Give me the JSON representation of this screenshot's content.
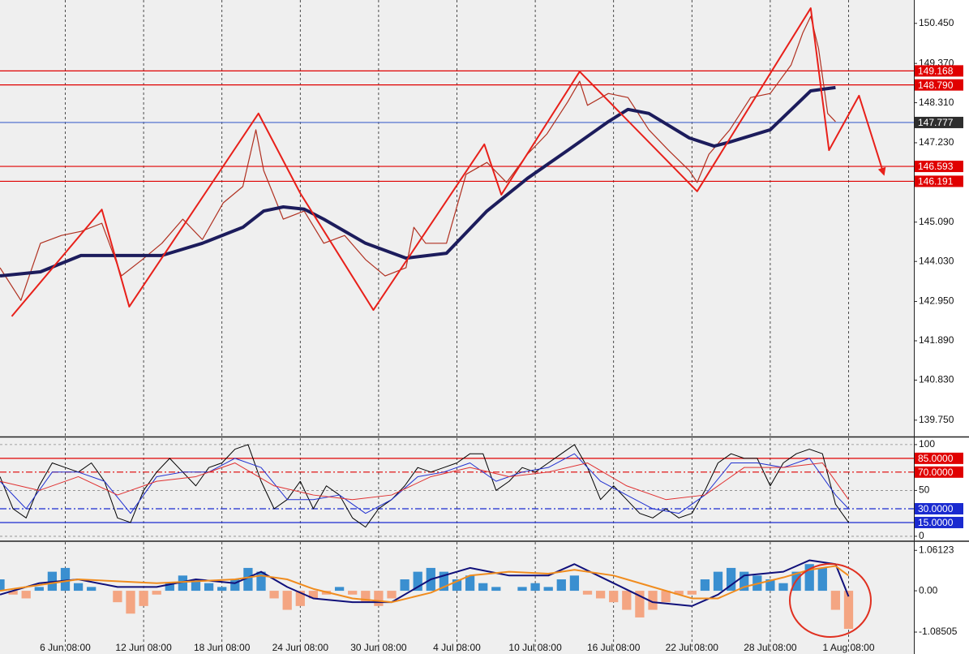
{
  "chart_data": [
    {
      "type": "line",
      "xlim": [
        1,
        71
      ],
      "ylim": [
        139.33,
        151.08
      ],
      "yticks": [
        {
          "value": 150.45,
          "label": "150.450"
        },
        {
          "value": 149.37,
          "label": "149.370"
        },
        {
          "value": 148.31,
          "label": "148.310"
        },
        {
          "value": 147.23,
          "label": "147.230"
        },
        {
          "value": 145.09,
          "label": "145.090"
        },
        {
          "value": 144.03,
          "label": "144.030"
        },
        {
          "value": 142.95,
          "label": "142.950"
        },
        {
          "value": 141.89,
          "label": "141.890"
        },
        {
          "value": 140.83,
          "label": "140.830"
        },
        {
          "value": 139.75,
          "label": "139.750"
        }
      ],
      "levels": [
        {
          "value": 149.168,
          "color": "#e00000",
          "box_color": "#e00000",
          "style": "solid"
        },
        {
          "value": 148.79,
          "label": "148.790",
          "color": "#e00000",
          "box_color": "#e00000",
          "style": "solid"
        },
        {
          "value": 147.777,
          "color": "#4466cc",
          "box_color": "#2e2e2e",
          "style": "solid"
        },
        {
          "value": 146.593,
          "color": "#e00000",
          "box_color": "#e00000",
          "style": "solid"
        },
        {
          "value": 146.191,
          "color": "#e00000",
          "box_color": "#e00000",
          "style": "solid"
        }
      ],
      "series": [
        {
          "color": "#b03020",
          "width": 1.2,
          "x": [
            1,
            2.6,
            4.1,
            5.7,
            7.2,
            8.8,
            10.3,
            11.9,
            13.4,
            15,
            16.5,
            18.1,
            19.6,
            20.6,
            21.2,
            22.7,
            24.3,
            25.8,
            27.4,
            29,
            30.5,
            32.1,
            32.7,
            33.6,
            35.2,
            36.7,
            38.3,
            39.8,
            41.4,
            42.9,
            44.5,
            45.4,
            46,
            47.6,
            49.1,
            50.7,
            52.2,
            53.8,
            54.4,
            55.3,
            56.9,
            58.5,
            60,
            61.6,
            62.5,
            63.1,
            63.7,
            64.4,
            65
          ],
          "values": [
            143.86,
            142.98,
            144.52,
            144.73,
            144.84,
            145.06,
            143.64,
            144.08,
            144.52,
            145.17,
            144.62,
            145.61,
            146.05,
            147.58,
            146.48,
            145.17,
            145.39,
            144.52,
            144.73,
            144.08,
            143.64,
            143.86,
            144.95,
            144.52,
            144.52,
            146.38,
            146.7,
            146.16,
            146.92,
            147.47,
            148.34,
            148.89,
            148.24,
            148.56,
            148.45,
            147.58,
            147.03,
            146.48,
            146.16,
            146.92,
            147.58,
            148.45,
            148.56,
            149.33,
            150.2,
            150.64,
            149.77,
            148.02,
            147.8
          ]
        },
        {
          "color": "#1c1c5c",
          "width": 4,
          "x": [
            1,
            4.1,
            7.2,
            10.3,
            13.4,
            16.5,
            19.6,
            21.2,
            22.7,
            24.3,
            25.8,
            29,
            32.1,
            35.2,
            38.3,
            41.4,
            44.5,
            47.6,
            49.1,
            50.7,
            53.8,
            55.7,
            56.9,
            60,
            63.1,
            65
          ],
          "values": [
            143.64,
            143.75,
            144.19,
            144.19,
            144.19,
            144.52,
            144.95,
            145.39,
            145.5,
            145.44,
            145.17,
            144.52,
            144.12,
            144.25,
            145.39,
            146.27,
            147.03,
            147.8,
            148.13,
            148.02,
            147.36,
            147.14,
            147.25,
            147.58,
            148.63,
            148.72
          ]
        },
        {
          "color": "#e8201a",
          "width": 2,
          "arrow": true,
          "x": [
            1.9,
            8.8,
            10.9,
            20.8,
            24,
            29.6,
            38.1,
            39.4,
            45.4,
            54.4,
            63.1,
            64.5,
            66.8,
            68.7
          ],
          "values": [
            142.55,
            145.43,
            142.81,
            148.02,
            145.87,
            142.72,
            147.19,
            145.83,
            149.15,
            145.92,
            150.86,
            147.03,
            148.5,
            146.38
          ]
        }
      ]
    },
    {
      "type": "line",
      "xlim": [
        1,
        71
      ],
      "ylim": [
        -4.5,
        107
      ],
      "yticks": [
        100,
        50,
        0
      ],
      "grid": true,
      "levels": [
        {
          "value": 85,
          "label": "85.0000",
          "color": "#e00000",
          "box_color": "#e00000",
          "style": "solid"
        },
        {
          "value": 70,
          "label": "70.0000",
          "color": "#e00000",
          "box_color": "#e00000",
          "style": "dashdot"
        },
        {
          "value": 30,
          "label": "30.0000",
          "color": "#1a2ad0",
          "box_color": "#1a2ad0",
          "style": "dashdot"
        },
        {
          "value": 15,
          "label": "15.0000",
          "color": "#1a2ad0",
          "box_color": "#1a2ad0",
          "style": "solid"
        }
      ],
      "series": [
        {
          "color": "#000000",
          "width": 1,
          "x": [
            1,
            2,
            3,
            4,
            5,
            6,
            7,
            8,
            9,
            10,
            11,
            12,
            13,
            14,
            15,
            16,
            17,
            18,
            19,
            20,
            21,
            22,
            23,
            24,
            25,
            26,
            27,
            28,
            29,
            30,
            31,
            32,
            33,
            34,
            35,
            36,
            37,
            38,
            39,
            40,
            41,
            42,
            43,
            44,
            45,
            46,
            47,
            48,
            49,
            50,
            51,
            52,
            53,
            54,
            55,
            56,
            57,
            58,
            59,
            60,
            61,
            62,
            63,
            64,
            65,
            66
          ],
          "values": [
            65,
            30,
            20,
            55,
            80,
            75,
            70,
            80,
            60,
            20,
            15,
            50,
            70,
            85,
            70,
            55,
            75,
            80,
            95,
            100,
            60,
            30,
            40,
            60,
            30,
            55,
            45,
            20,
            10,
            30,
            40,
            55,
            75,
            70,
            75,
            80,
            90,
            90,
            50,
            60,
            75,
            70,
            80,
            90,
            100,
            75,
            40,
            55,
            40,
            25,
            20,
            30,
            20,
            25,
            50,
            80,
            90,
            85,
            85,
            55,
            80,
            90,
            95,
            90,
            35,
            15
          ]
        },
        {
          "color": "#2030d0",
          "width": 1,
          "x": [
            1,
            3,
            5,
            7,
            9,
            11,
            13,
            15,
            17,
            19,
            21,
            23,
            25,
            27,
            29,
            31,
            33,
            35,
            37,
            39,
            41,
            43,
            45,
            47,
            49,
            51,
            53,
            55,
            57,
            59,
            61,
            63,
            65,
            66
          ],
          "values": [
            60,
            30,
            70,
            70,
            60,
            25,
            65,
            70,
            70,
            85,
            75,
            40,
            40,
            45,
            25,
            40,
            65,
            70,
            80,
            60,
            70,
            75,
            90,
            60,
            45,
            30,
            25,
            45,
            80,
            80,
            75,
            85,
            45,
            30
          ]
        },
        {
          "color": "#e03030",
          "width": 1,
          "x": [
            1,
            4,
            7,
            10,
            13,
            16,
            19,
            22,
            25,
            28,
            31,
            34,
            37,
            40,
            43,
            46,
            49,
            52,
            55,
            58,
            61,
            64,
            66
          ],
          "values": [
            60,
            50,
            65,
            45,
            60,
            65,
            80,
            55,
            45,
            40,
            45,
            65,
            75,
            65,
            70,
            80,
            55,
            40,
            45,
            75,
            75,
            80,
            40
          ]
        }
      ]
    },
    {
      "type": "combo",
      "xlim": [
        1,
        71
      ],
      "ylim": [
        -1.66,
        1.28
      ],
      "yticks": [
        1.06123,
        {
          "value": 0,
          "label": "0.00"
        },
        -1.08505
      ],
      "xticks": [
        {
          "value": 6,
          "label": "6 Jun 08:00"
        },
        {
          "value": 12,
          "label": "12 Jun 08:00"
        },
        {
          "value": 18,
          "label": "18 Jun 08:00"
        },
        {
          "value": 24,
          "label": "24 Jun 08:00"
        },
        {
          "value": 30,
          "label": "30 Jun 08:00"
        },
        {
          "value": 36,
          "label": "4 Jul 08:00"
        },
        {
          "value": 42,
          "label": "10 Jul 08:00"
        },
        {
          "value": 48,
          "label": "16 Jul 08:00"
        },
        {
          "value": 54,
          "label": "22 Jul 08:00"
        },
        {
          "value": 60,
          "label": "28 Jul 08:00"
        },
        {
          "value": 66,
          "label": "1 Aug 08:00"
        }
      ],
      "series": [
        {
          "kind": "bar",
          "color": "#3a8fd0",
          "negative_color": "#f4a582",
          "x": [
            1,
            2,
            3,
            4,
            5,
            6,
            7,
            8,
            9,
            10,
            11,
            12,
            13,
            14,
            15,
            16,
            17,
            18,
            19,
            20,
            21,
            22,
            23,
            24,
            25,
            26,
            27,
            28,
            29,
            30,
            31,
            32,
            33,
            34,
            35,
            36,
            37,
            38,
            39,
            40,
            41,
            42,
            43,
            44,
            45,
            46,
            47,
            48,
            49,
            50,
            51,
            52,
            53,
            54,
            55,
            56,
            57,
            58,
            59,
            60,
            61,
            62,
            63,
            64,
            65,
            66
          ],
          "values": [
            0.3,
            -0.1,
            -0.2,
            0.1,
            0.5,
            0.6,
            0.2,
            0.1,
            0,
            -0.3,
            -0.6,
            -0.4,
            -0.1,
            0.2,
            0.4,
            0.3,
            0.2,
            0.1,
            0.3,
            0.6,
            0.5,
            -0.2,
            -0.5,
            -0.4,
            -0.2,
            -0.1,
            0.1,
            -0.1,
            -0.3,
            -0.4,
            -0.2,
            0.3,
            0.5,
            0.6,
            0.5,
            0.3,
            0.4,
            0.2,
            0.1,
            0,
            0.1,
            0.2,
            0.1,
            0.3,
            0.4,
            -0.1,
            -0.2,
            -0.3,
            -0.5,
            -0.7,
            -0.5,
            -0.3,
            -0.1,
            -0.1,
            0.3,
            0.5,
            0.6,
            0.5,
            0.4,
            0.3,
            0.2,
            0.5,
            0.7,
            0.6,
            -0.5,
            -1.0
          ]
        },
        {
          "kind": "line",
          "color": "#10107a",
          "width": 2,
          "x": [
            1,
            4,
            7,
            10,
            13,
            16,
            19,
            21,
            23,
            25,
            28,
            31,
            34,
            37,
            40,
            43,
            45,
            48,
            51,
            54,
            56,
            58,
            61,
            63,
            65,
            66
          ],
          "values": [
            -0.1,
            0.2,
            0.3,
            0.1,
            0.1,
            0.3,
            0.2,
            0.5,
            0.1,
            -0.2,
            -0.3,
            -0.3,
            0.3,
            0.6,
            0.4,
            0.4,
            0.7,
            0.2,
            -0.3,
            -0.4,
            -0.1,
            0.4,
            0.5,
            0.8,
            0.7,
            -0.15
          ]
        },
        {
          "kind": "line",
          "color": "#f08c1e",
          "width": 2,
          "x": [
            1,
            4,
            7,
            10,
            13,
            16,
            19,
            21,
            23,
            25,
            28,
            31,
            34,
            37,
            40,
            43,
            45,
            48,
            51,
            54,
            56,
            58,
            61,
            63,
            65,
            66
          ],
          "values": [
            0,
            0.15,
            0.3,
            0.25,
            0.2,
            0.25,
            0.3,
            0.4,
            0.3,
            0.05,
            -0.2,
            -0.3,
            -0.05,
            0.4,
            0.5,
            0.45,
            0.55,
            0.4,
            0.1,
            -0.2,
            -0.2,
            0.1,
            0.35,
            0.55,
            0.65,
            0.4
          ]
        }
      ]
    }
  ]
}
